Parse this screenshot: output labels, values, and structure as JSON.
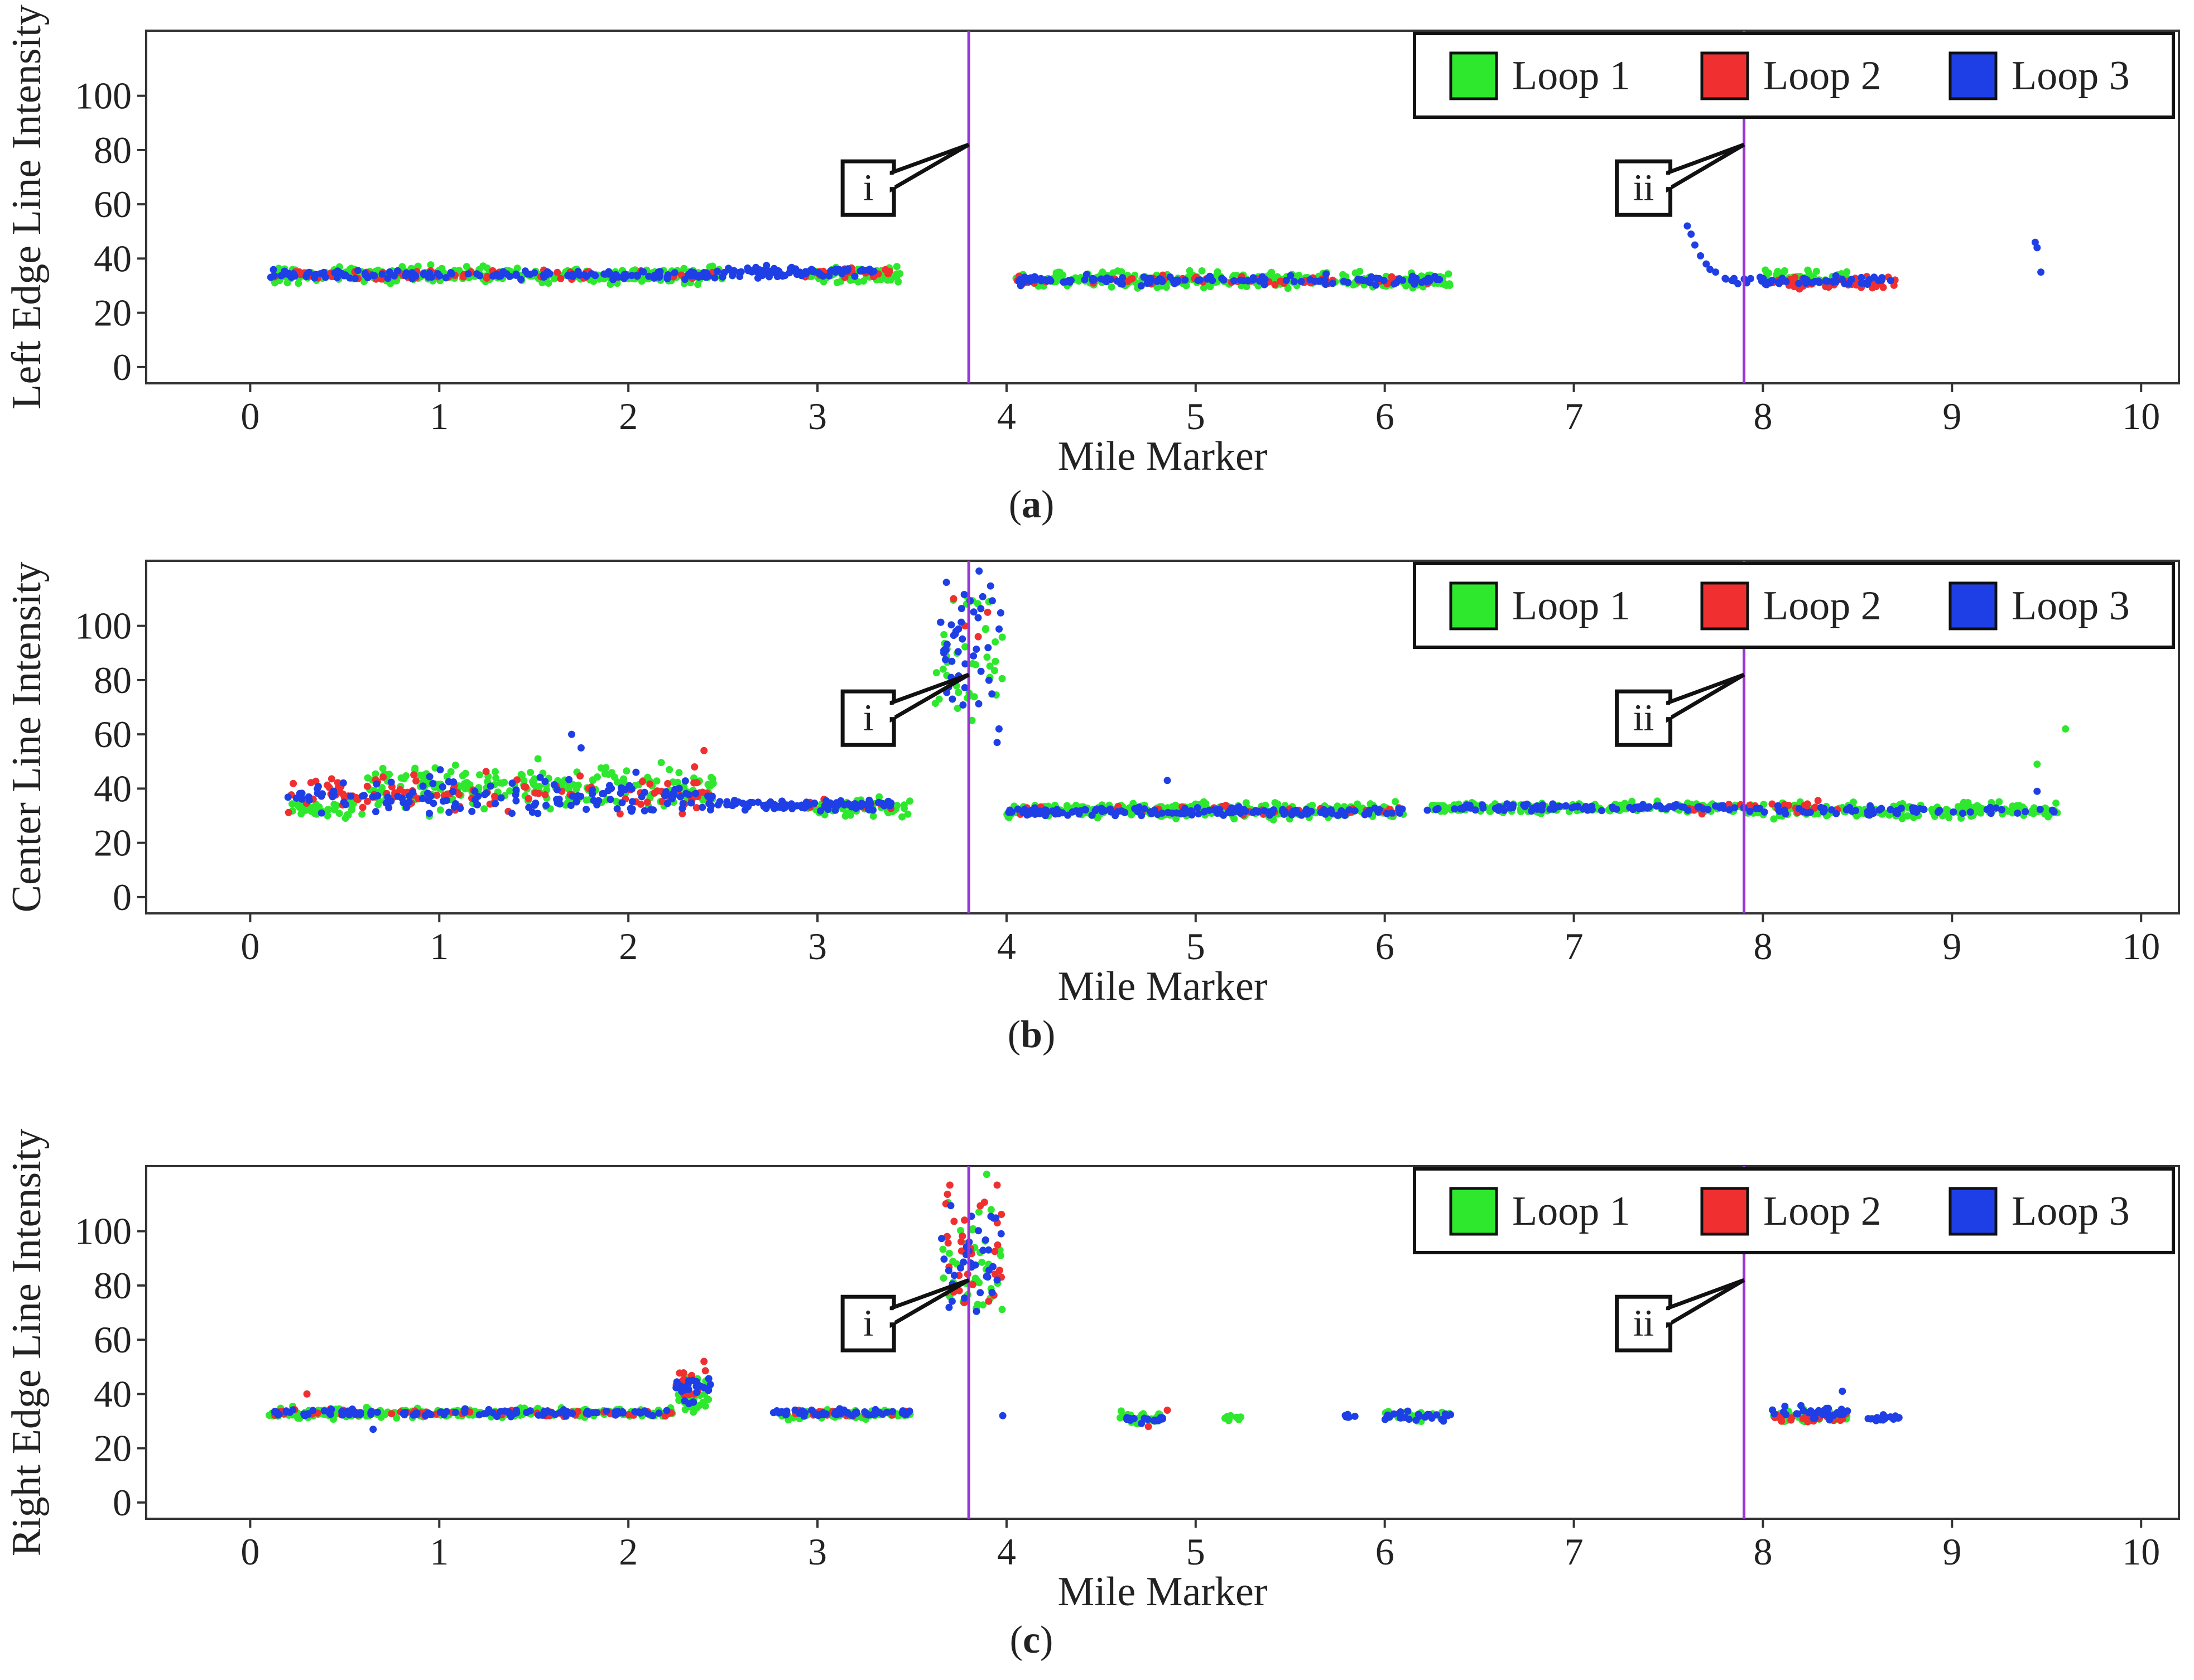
{
  "chart_data": [
    {
      "panel": "a",
      "type": "scatter",
      "caption": "a",
      "xlabel": "Mile Marker",
      "ylabel": "Left Edge Line Intensity",
      "xlim": [
        -0.55,
        10.2
      ],
      "ylim": [
        -6,
        124
      ],
      "xticks": [
        0,
        1,
        2,
        3,
        4,
        5,
        6,
        7,
        8,
        9,
        10
      ],
      "yticks": [
        0,
        20,
        40,
        60,
        80,
        100
      ],
      "vlines": [
        3.8,
        7.9
      ],
      "callouts": [
        {
          "label": "i",
          "line_x": 3.8,
          "target_y": 82
        },
        {
          "label": "ii",
          "line_x": 7.9,
          "target_y": 82
        }
      ],
      "legend": {
        "position": "top-right",
        "entries": [
          "Loop 1",
          "Loop 2",
          "Loop 3"
        ]
      },
      "series": [
        {
          "name": "Loop 1",
          "color": "#2ee82e",
          "segments": [
            {
              "x0": 0.12,
              "x1": 2.5,
              "base": 34,
              "noise": 2.5,
              "n": 320
            },
            {
              "x0": 2.95,
              "x1": 3.45,
              "base": 34,
              "noise": 3,
              "n": 60
            },
            {
              "x0": 4.05,
              "x1": 6.35,
              "base": 32,
              "noise": 2.5,
              "n": 300
            },
            {
              "x0": 8.0,
              "x1": 8.45,
              "base": 33,
              "noise": 2,
              "n": 60
            }
          ]
        },
        {
          "name": "Loop 2",
          "color": "#f03030",
          "segments": [
            {
              "x0": 0.12,
              "x1": 2.5,
              "base": 34,
              "noise": 1.5,
              "n": 70
            },
            {
              "x0": 2.9,
              "x1": 3.4,
              "base": 35,
              "noise": 1.5,
              "n": 20
            },
            {
              "x0": 4.05,
              "x1": 6.3,
              "base": 32,
              "noise": 1.5,
              "n": 60
            },
            {
              "x0": 8.05,
              "x1": 8.7,
              "base": 31,
              "noise": 2.5,
              "n": 50
            }
          ]
        },
        {
          "name": "Loop 3",
          "color": "#1f3fe6",
          "segments": [
            {
              "x0": 0.1,
              "x1": 2.5,
              "base": 34,
              "noise": 1.5,
              "n": 150
            },
            {
              "x0": 2.5,
              "x1": 3.3,
              "base": 35,
              "noise": 1.5,
              "n": 90
            },
            {
              "x0": 4.05,
              "x1": 6.3,
              "base": 32,
              "noise": 1.5,
              "n": 120
            },
            {
              "x0": 7.78,
              "x1": 8.7,
              "base": 32,
              "noise": 1.2,
              "n": 60
            }
          ],
          "points": [
            [
              7.6,
              52
            ],
            [
              7.62,
              49
            ],
            [
              7.64,
              45
            ],
            [
              7.67,
              41
            ],
            [
              7.7,
              38
            ],
            [
              7.72,
              36
            ],
            [
              7.75,
              35
            ],
            [
              9.44,
              46
            ],
            [
              9.45,
              44
            ],
            [
              9.47,
              35
            ]
          ]
        }
      ]
    },
    {
      "panel": "b",
      "type": "scatter",
      "caption": "b",
      "xlabel": "Mile Marker",
      "ylabel": "Center Line Intensity",
      "xlim": [
        -0.55,
        10.2
      ],
      "ylim": [
        -6,
        124
      ],
      "xticks": [
        0,
        1,
        2,
        3,
        4,
        5,
        6,
        7,
        8,
        9,
        10
      ],
      "yticks": [
        0,
        20,
        40,
        60,
        80,
        100
      ],
      "vlines": [
        3.8,
        7.9
      ],
      "callouts": [
        {
          "label": "i",
          "line_x": 3.8,
          "target_y": 82
        },
        {
          "label": "ii",
          "line_x": 7.9,
          "target_y": 82
        }
      ],
      "legend": {
        "position": "top-right",
        "entries": [
          "Loop 1",
          "Loop 2",
          "Loop 3"
        ]
      },
      "series": [
        {
          "name": "Loop 1",
          "color": "#2ee82e",
          "segments": [
            {
              "x0": 0.2,
              "x1": 0.6,
              "base": 33,
              "noise": 3,
              "n": 40
            },
            {
              "x0": 0.6,
              "x1": 2.45,
              "base": 40,
              "noise": 7,
              "n": 230
            },
            {
              "x0": 2.95,
              "x1": 3.5,
              "base": 33,
              "noise": 2.5,
              "n": 60
            },
            {
              "x0": 3.62,
              "x1": 3.98,
              "base": 90,
              "noise": 22,
              "n": 40
            },
            {
              "x0": 4.0,
              "x1": 6.1,
              "base": 32,
              "noise": 2.5,
              "n": 260
            },
            {
              "x0": 6.25,
              "x1": 7.9,
              "base": 33,
              "noise": 1.5,
              "n": 200
            },
            {
              "x0": 7.9,
              "x1": 9.6,
              "base": 32,
              "noise": 2.5,
              "n": 200
            }
          ],
          "points": [
            [
              9.6,
              62
            ],
            [
              9.45,
              49
            ]
          ]
        },
        {
          "name": "Loop 2",
          "color": "#f03030",
          "segments": [
            {
              "x0": 0.2,
              "x1": 2.45,
              "base": 38,
              "noise": 6,
              "n": 120
            },
            {
              "x0": 2.95,
              "x1": 3.4,
              "base": 34,
              "noise": 1.5,
              "n": 15
            },
            {
              "x0": 4.0,
              "x1": 6.1,
              "base": 32,
              "noise": 1.5,
              "n": 40
            },
            {
              "x0": 7.6,
              "x1": 8.4,
              "base": 33,
              "noise": 2,
              "n": 30
            }
          ],
          "points": [
            [
              2.4,
              54
            ],
            [
              2.35,
              48
            ],
            [
              3.72,
              110
            ],
            [
              3.78,
              100
            ],
            [
              3.85,
              96
            ],
            [
              3.9,
              105
            ]
          ]
        },
        {
          "name": "Loop 3",
          "color": "#1f3fe6",
          "segments": [
            {
              "x0": 0.2,
              "x1": 2.45,
              "base": 37,
              "noise": 6,
              "n": 150
            },
            {
              "x0": 2.45,
              "x1": 3.4,
              "base": 34,
              "noise": 1.5,
              "n": 90
            },
            {
              "x0": 3.62,
              "x1": 3.98,
              "base": 95,
              "noise": 20,
              "n": 45
            },
            {
              "x0": 4.0,
              "x1": 6.1,
              "base": 31.5,
              "noise": 1.5,
              "n": 150
            },
            {
              "x0": 6.2,
              "x1": 7.9,
              "base": 33,
              "noise": 1,
              "n": 100
            },
            {
              "x0": 7.9,
              "x1": 9.55,
              "base": 32,
              "noise": 1.5,
              "n": 60
            }
          ],
          "points": [
            [
              1.7,
              60
            ],
            [
              1.75,
              55
            ],
            [
              3.95,
              57
            ],
            [
              3.96,
              62
            ],
            [
              4.85,
              43
            ],
            [
              9.45,
              39
            ]
          ]
        }
      ]
    },
    {
      "panel": "c",
      "type": "scatter",
      "caption": "c",
      "xlabel": "Mile Marker",
      "ylabel": "Right Edge Line Intensity",
      "xlim": [
        -0.55,
        10.2
      ],
      "ylim": [
        -6,
        124
      ],
      "xticks": [
        0,
        1,
        2,
        3,
        4,
        5,
        6,
        7,
        8,
        9,
        10
      ],
      "yticks": [
        0,
        20,
        40,
        60,
        80,
        100
      ],
      "vlines": [
        3.8,
        7.9
      ],
      "callouts": [
        {
          "label": "i",
          "line_x": 3.8,
          "target_y": 82
        },
        {
          "label": "ii",
          "line_x": 7.9,
          "target_y": 82
        }
      ],
      "legend": {
        "position": "top-right",
        "entries": [
          "Loop 1",
          "Loop 2",
          "Loop 3"
        ]
      },
      "series": [
        {
          "name": "Loop 1",
          "color": "#2ee82e",
          "segments": [
            {
              "x0": 0.1,
              "x1": 2.25,
              "base": 33,
              "noise": 1.5,
              "n": 260
            },
            {
              "x0": 2.25,
              "x1": 2.45,
              "base": 40,
              "noise": 6,
              "n": 30
            },
            {
              "x0": 2.8,
              "x1": 3.5,
              "base": 32.5,
              "noise": 1.5,
              "n": 70
            },
            {
              "x0": 3.65,
              "x1": 3.98,
              "base": 85,
              "noise": 25,
              "n": 40
            },
            {
              "x0": 4.6,
              "x1": 4.85,
              "base": 31,
              "noise": 2,
              "n": 25
            },
            {
              "x0": 5.15,
              "x1": 5.25,
              "base": 31,
              "noise": 1,
              "n": 10
            },
            {
              "x0": 6.0,
              "x1": 6.35,
              "base": 32,
              "noise": 1.5,
              "n": 35
            },
            {
              "x0": 8.05,
              "x1": 8.45,
              "base": 32,
              "noise": 2,
              "n": 50
            }
          ]
        },
        {
          "name": "Loop 2",
          "color": "#f03030",
          "segments": [
            {
              "x0": 0.1,
              "x1": 2.25,
              "base": 33,
              "noise": 1.2,
              "n": 60
            },
            {
              "x0": 2.25,
              "x1": 2.45,
              "base": 44,
              "noise": 4,
              "n": 15
            },
            {
              "x0": 2.8,
              "x1": 3.5,
              "base": 33,
              "noise": 1.2,
              "n": 20
            },
            {
              "x0": 3.65,
              "x1": 3.98,
              "base": 92,
              "noise": 20,
              "n": 30
            },
            {
              "x0": 8.05,
              "x1": 8.45,
              "base": 31,
              "noise": 2,
              "n": 25
            }
          ],
          "points": [
            [
              0.3,
              40
            ],
            [
              3.7,
              117
            ],
            [
              3.95,
              117
            ],
            [
              2.4,
              52
            ],
            [
              4.85,
              34
            ],
            [
              4.75,
              28
            ]
          ]
        },
        {
          "name": "Loop 3",
          "color": "#1f3fe6",
          "segments": [
            {
              "x0": 0.1,
              "x1": 2.25,
              "base": 33,
              "noise": 1.2,
              "n": 110
            },
            {
              "x0": 2.25,
              "x1": 2.45,
              "base": 42,
              "noise": 4,
              "n": 25
            },
            {
              "x0": 2.75,
              "x1": 3.5,
              "base": 33,
              "noise": 1.2,
              "n": 60
            },
            {
              "x0": 3.65,
              "x1": 3.98,
              "base": 90,
              "noise": 22,
              "n": 35
            },
            {
              "x0": 4.6,
              "x1": 4.85,
              "base": 31,
              "noise": 1.5,
              "n": 20
            },
            {
              "x0": 5.78,
              "x1": 5.86,
              "base": 32,
              "noise": 1,
              "n": 6
            },
            {
              "x0": 6.0,
              "x1": 6.35,
              "base": 32,
              "noise": 1.5,
              "n": 25
            },
            {
              "x0": 8.05,
              "x1": 8.45,
              "base": 33,
              "noise": 2,
              "n": 35
            },
            {
              "x0": 8.55,
              "x1": 8.72,
              "base": 31,
              "noise": 1.2,
              "n": 20
            }
          ],
          "points": [
            [
              0.65,
              27
            ],
            [
              8.42,
              41
            ],
            [
              3.98,
              32
            ],
            [
              3.95,
              82
            ]
          ]
        }
      ]
    }
  ]
}
